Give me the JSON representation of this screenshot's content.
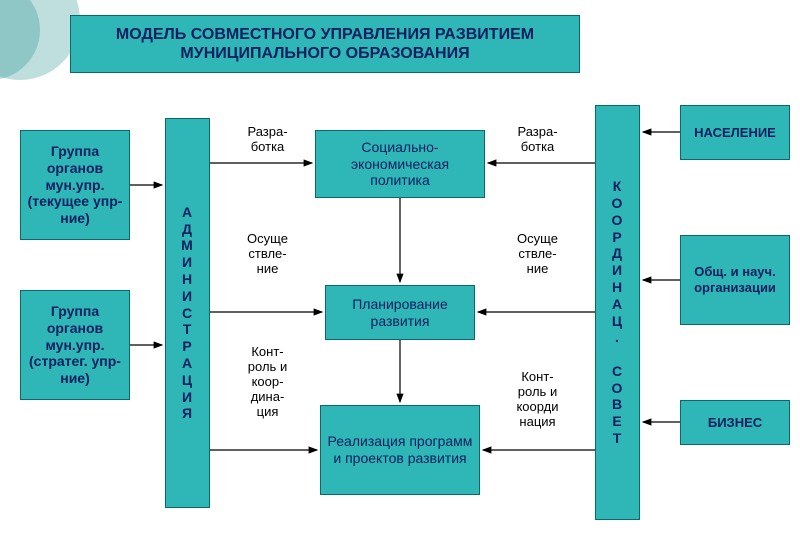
{
  "diagram": {
    "type": "flowchart",
    "background_color": "#ffffff",
    "box_bg": "#2fb7b7",
    "box_border": "#0a6a6a",
    "title_color": "#0a2060",
    "text_color": "#000000",
    "arrow_color": "#000000",
    "title_fontsize": 16,
    "box_fontsize": 14,
    "label_fontsize": 13
  },
  "title": {
    "line1": "МОДЕЛЬ СОВМЕСТНОГО УПРАВЛЕНИЯ РАЗВИТИЕМ",
    "line2": "МУНИЦИПАЛЬНОГО ОБРАЗОВАНИЯ"
  },
  "left": {
    "box1": "Группа органов мун.упр. (текущее упр-ние)",
    "box2": "Группа органов мун.упр. (стратег. упр-ние)"
  },
  "pillars": {
    "admin": "АДМИНИСТРАЦИЯ",
    "council_top": "КООРДИНАЦ.",
    "council_bot": "СОВЕТ"
  },
  "center": {
    "c1": "Социально-экономическая политика",
    "c2": "Планирование развития",
    "c3": "Реализация программ и проектов развития"
  },
  "right": {
    "r1": "НАСЕЛЕНИЕ",
    "r2": "Общ. и науч. организации",
    "r3": "БИЗНЕС"
  },
  "labels": {
    "razrabotka_l": "Разра-\nботка",
    "razrabotka_r": "Разра-\nботка",
    "osusch_l": "Осуще\nствле-\nние",
    "osusch_r": "Осуще\nствле-\nние",
    "kontrol_l": "Конт-\nроль и\nкоор-\nдина-\nция",
    "kontrol_r": "Конт-\nроль и\nкоорди\nнация"
  }
}
